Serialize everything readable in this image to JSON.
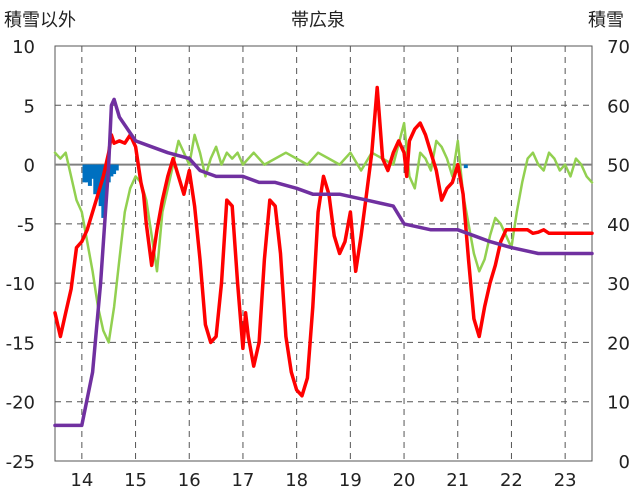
{
  "chart_data": {
    "type": "line",
    "title": "帯広泉",
    "left_axis_label": "積雪以外",
    "right_axis_label": "積雪",
    "left_ylim": [
      -25,
      10
    ],
    "right_ylim": [
      0,
      70
    ],
    "left_yticks": [
      10,
      5,
      0,
      -5,
      -10,
      -15,
      -20,
      -25
    ],
    "right_yticks": [
      70,
      60,
      50,
      40,
      30,
      20,
      10,
      0
    ],
    "xlim": [
      13.5,
      23.5
    ],
    "x_ticks": [
      14,
      15,
      16,
      17,
      18,
      19,
      20,
      21,
      22,
      23
    ],
    "x_tick_labels": [
      "14",
      "15",
      "16",
      "17",
      "18",
      "19",
      "20",
      "21",
      "22",
      "23"
    ],
    "grid": "dashed vertical at each day, dashed horizontal at 5-unit steps",
    "zero_line": true,
    "colors": {
      "red": "#ff0000",
      "green": "#92d050",
      "purple": "#7030a0",
      "blue": "#0070c0",
      "zero": "#808080",
      "grid": "#555555"
    },
    "series": [
      {
        "color": "red",
        "axis": "left",
        "x": [
          13.5,
          13.6,
          13.7,
          13.8,
          13.9,
          14.0,
          14.1,
          14.2,
          14.3,
          14.4,
          14.5,
          14.55,
          14.6,
          14.7,
          14.8,
          14.9,
          15.0,
          15.1,
          15.15,
          15.2,
          15.3,
          15.4,
          15.5,
          15.6,
          15.7,
          15.8,
          15.9,
          16.0,
          16.1,
          16.2,
          16.3,
          16.4,
          16.5,
          16.6,
          16.7,
          16.8,
          16.9,
          17.0,
          17.05,
          17.1,
          17.2,
          17.3,
          17.4,
          17.5,
          17.6,
          17.7,
          17.8,
          17.9,
          18.0,
          18.1,
          18.2,
          18.3,
          18.4,
          18.5,
          18.6,
          18.7,
          18.8,
          18.9,
          19.0,
          19.1,
          19.2,
          19.3,
          19.4,
          19.5,
          19.6,
          19.7,
          19.8,
          19.9,
          20.0,
          20.05,
          20.1,
          20.2,
          20.3,
          20.4,
          20.5,
          20.6,
          20.7,
          20.8,
          20.9,
          21.0,
          21.1,
          21.2,
          21.3,
          21.4,
          21.5,
          21.6,
          21.7,
          21.8,
          21.9,
          22.0,
          22.1,
          22.2,
          22.3,
          22.4,
          22.5,
          22.6,
          22.7,
          22.8,
          22.9,
          23.0,
          23.1,
          23.2,
          23.3,
          23.4,
          23.5
        ],
        "values": [
          -12.5,
          -14.5,
          -12.5,
          -10.5,
          -7.0,
          -6.5,
          -5.5,
          -4.0,
          -2.5,
          -1.0,
          1.0,
          2.5,
          1.8,
          2.0,
          1.8,
          2.5,
          1.5,
          -1.5,
          -2.5,
          -5.0,
          -8.5,
          -5.5,
          -3.0,
          -1.0,
          0.5,
          -1.0,
          -2.5,
          -0.5,
          -3.5,
          -8.0,
          -13.5,
          -15.0,
          -14.5,
          -10.0,
          -3.0,
          -3.5,
          -10.0,
          -15.5,
          -12.5,
          -14.5,
          -17.0,
          -15.0,
          -8.0,
          -3.0,
          -3.5,
          -7.5,
          -14.5,
          -17.5,
          -19.0,
          -19.5,
          -18.0,
          -12.0,
          -4.0,
          -1.0,
          -2.5,
          -6.0,
          -7.5,
          -6.5,
          -4.0,
          -9.0,
          -6.0,
          -2.5,
          1.0,
          6.5,
          0.5,
          -0.5,
          1.0,
          2.0,
          1.0,
          -1.0,
          2.0,
          3.0,
          3.5,
          2.5,
          1.0,
          -0.5,
          -3.0,
          -2.0,
          -1.5,
          0.0,
          -2.5,
          -8.0,
          -13.0,
          -14.5,
          -12.0,
          -10.0,
          -8.5,
          -6.5,
          -5.5,
          -5.5,
          -5.5,
          -5.5,
          -5.5,
          -5.8,
          -5.7,
          -5.5,
          -5.8,
          -5.8,
          -5.8,
          -5.8,
          -5.8,
          -5.8,
          -5.8,
          -5.8,
          -5.8
        ]
      },
      {
        "color": "green",
        "axis": "left",
        "x": [
          13.5,
          13.6,
          13.7,
          13.8,
          13.9,
          14.0,
          14.1,
          14.2,
          14.3,
          14.4,
          14.5,
          14.6,
          14.7,
          14.8,
          14.9,
          15.0,
          15.1,
          15.2,
          15.3,
          15.4,
          15.5,
          15.6,
          15.7,
          15.8,
          15.9,
          16.0,
          16.1,
          16.2,
          16.3,
          16.4,
          16.5,
          16.6,
          16.7,
          16.8,
          16.9,
          17.0,
          17.2,
          17.4,
          17.6,
          17.8,
          18.0,
          18.2,
          18.4,
          18.6,
          18.8,
          19.0,
          19.2,
          19.4,
          19.6,
          19.8,
          20.0,
          20.1,
          20.2,
          20.3,
          20.4,
          20.5,
          20.6,
          20.7,
          20.8,
          20.9,
          21.0,
          21.1,
          21.2,
          21.3,
          21.4,
          21.5,
          21.6,
          21.7,
          21.8,
          21.9,
          22.0,
          22.1,
          22.2,
          22.3,
          22.4,
          22.5,
          22.6,
          22.7,
          22.8,
          22.9,
          23.0,
          23.1,
          23.2,
          23.3,
          23.4,
          23.5
        ],
        "values": [
          1.0,
          0.5,
          1.0,
          -1.0,
          -3.0,
          -4.0,
          -6.5,
          -9.0,
          -12.0,
          -14.0,
          -15.0,
          -12.0,
          -8.0,
          -4.0,
          -2.0,
          -1.0,
          -1.5,
          -3.0,
          -6.0,
          -9.0,
          -4.0,
          -2.0,
          0.0,
          2.0,
          1.0,
          0.0,
          2.5,
          1.0,
          -1.0,
          0.5,
          1.5,
          0.0,
          1.0,
          0.5,
          1.0,
          0.0,
          1.0,
          0.0,
          0.5,
          1.0,
          0.5,
          0.0,
          1.0,
          0.5,
          0.0,
          1.0,
          -0.5,
          1.0,
          0.5,
          0.0,
          3.5,
          -1.0,
          -2.0,
          1.0,
          0.5,
          -0.5,
          2.0,
          1.5,
          0.5,
          -1.0,
          2.0,
          -2.5,
          -5.0,
          -7.5,
          -9.0,
          -8.0,
          -6.0,
          -4.5,
          -5.0,
          -6.0,
          -7.0,
          -4.0,
          -1.5,
          0.5,
          1.0,
          0.0,
          -0.5,
          1.0,
          0.5,
          -0.5,
          0.0,
          -1.0,
          0.5,
          0.0,
          -1.0,
          -1.5
        ]
      },
      {
        "color": "purple",
        "axis": "right",
        "x": [
          13.5,
          13.7,
          13.9,
          14.0,
          14.2,
          14.35,
          14.5,
          14.55,
          14.6,
          14.7,
          15.0,
          15.3,
          15.6,
          16.0,
          16.2,
          16.5,
          17.0,
          17.3,
          17.6,
          18.0,
          18.3,
          18.8,
          19.3,
          19.8,
          20.0,
          20.5,
          21.0,
          21.3,
          21.6,
          22.0,
          22.5,
          23.0,
          23.5
        ],
        "values": [
          6,
          6,
          6,
          6,
          15,
          30,
          50,
          60,
          61,
          58,
          54,
          53,
          52,
          51,
          49,
          48,
          48,
          47,
          47,
          46,
          45,
          45,
          44,
          43,
          40,
          39,
          39,
          38,
          37,
          36,
          35,
          35,
          35
        ]
      },
      {
        "color": "blue",
        "axis": "left",
        "type": "bar",
        "x": [
          14.05,
          14.1,
          14.15,
          14.2,
          14.25,
          14.3,
          14.35,
          14.4,
          14.45,
          14.5,
          14.55,
          14.6,
          14.65,
          21.15
        ],
        "values": [
          -1.5,
          -1.5,
          -1.8,
          -1.2,
          -2.5,
          -2.5,
          -3.5,
          -4.5,
          -2.5,
          -1.5,
          -1.0,
          -0.8,
          -0.5,
          -0.3
        ]
      }
    ]
  }
}
